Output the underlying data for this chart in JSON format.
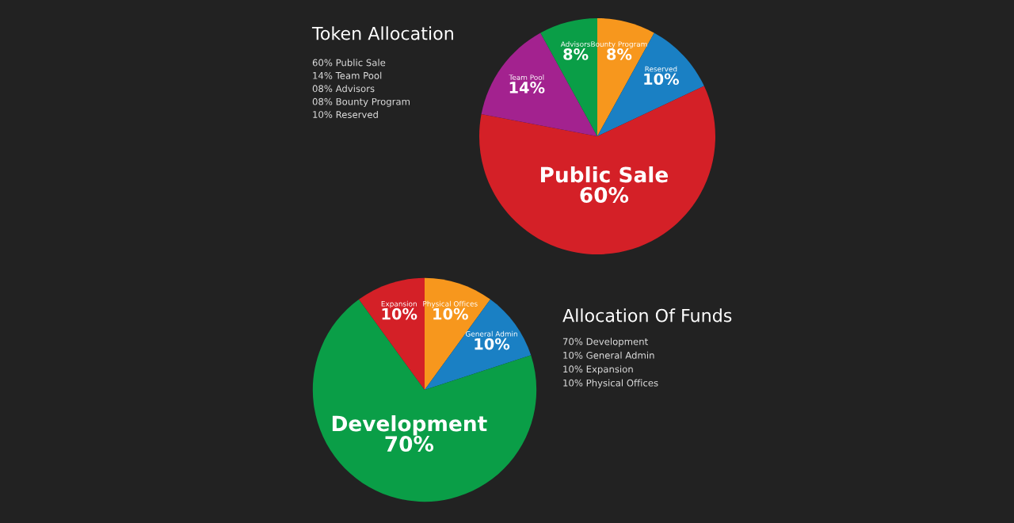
{
  "chart_data": [
    {
      "type": "pie",
      "title": "Token Allocation",
      "categories": [
        "Bounty Program",
        "Reserved",
        "Public Sale",
        "Team Pool",
        "Advisors"
      ],
      "values": [
        8,
        10,
        60,
        14,
        8
      ],
      "value_labels": [
        "8%",
        "10%",
        "60%",
        "14%",
        "8%"
      ],
      "colors": [
        "#f7971d",
        "#1a80c4",
        "#d42027",
        "#a3228f",
        "#0a9e47"
      ],
      "annotations": [
        "60% Public Sale",
        "14% Team Pool",
        "08% Advisors",
        "08% Bounty Program",
        "10% Reserved"
      ],
      "legend": false
    },
    {
      "type": "pie",
      "title": "Allocation Of Funds",
      "categories": [
        "Physical Offices",
        "General Admin",
        "Development",
        "Expansion"
      ],
      "values": [
        10,
        10,
        70,
        10
      ],
      "value_labels": [
        "10%",
        "10%",
        "70%",
        "10%"
      ],
      "colors": [
        "#f7971d",
        "#1a80c4",
        "#0a9e47",
        "#d42027"
      ],
      "annotations": [
        "70% Development",
        "10% General Admin",
        "10% Expansion",
        "10% Physical Offices"
      ],
      "legend": false
    }
  ]
}
